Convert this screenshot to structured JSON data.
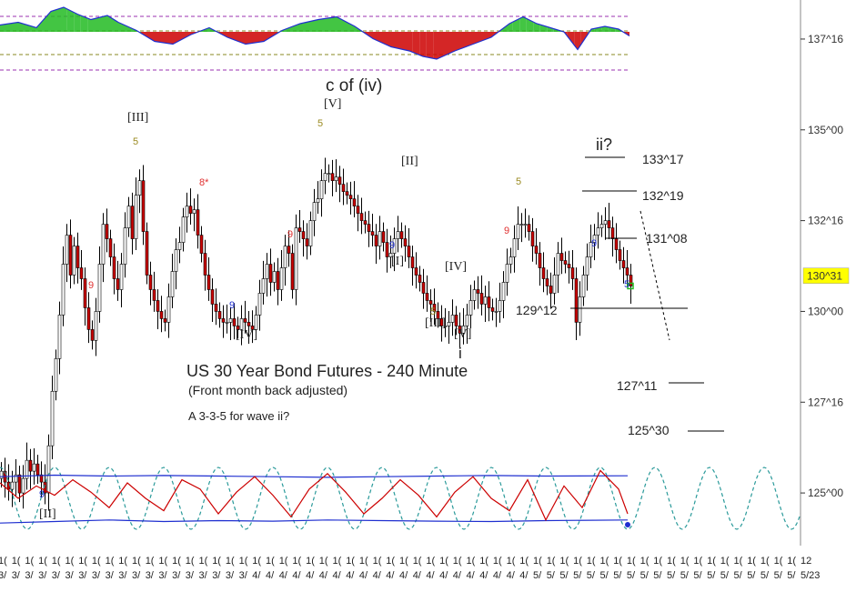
{
  "chart_data": {
    "type": "candlestick",
    "title": "US 30 Year Bond Futures - 240 Minute",
    "subtitle": "(Front month back adjusted)",
    "note": "A 3-3-5 for wave ii?",
    "price_axis": {
      "ylim": [
        123.6,
        138.2
      ],
      "ticks": [
        {
          "value": 137.5,
          "label": "137^16"
        },
        {
          "value": 135.0,
          "label": "135^00"
        },
        {
          "value": 132.5,
          "label": "132^16"
        },
        {
          "value": 130.0,
          "label": "130^00"
        },
        {
          "value": 127.5,
          "label": "127^16"
        },
        {
          "value": 125.0,
          "label": "125^00"
        }
      ],
      "current_price": {
        "value": 130.97,
        "label": "130^31",
        "color": "#ffff00"
      }
    },
    "x_tick_row1": [
      "1(",
      "1(",
      "1(",
      "1(",
      "1(",
      "1(",
      "1(",
      "1(",
      "1(",
      "1(",
      "1(",
      "1(",
      "1(",
      "1(",
      "1(",
      "1(",
      "1(",
      "1(",
      "1(",
      "1(",
      "1(",
      "1(",
      "1(",
      "1(",
      "1(",
      "1(",
      "1(",
      "1(",
      "1(",
      "1(",
      "1(",
      "1(",
      "1(",
      "1(",
      "1(",
      "1(",
      "1(",
      "1(",
      "1(",
      "1(",
      "1(",
      "1(",
      "1(",
      "1(",
      "1(",
      "1(",
      "1(",
      "1(",
      "1(",
      "1(",
      "1(",
      "1(",
      "1(",
      "1(",
      "1(",
      "1(",
      "1(",
      "1(",
      "1(",
      "1(",
      "12"
    ],
    "x_tick_row2": [
      "3/",
      "3/",
      "3/",
      "3/",
      "3/",
      "3/",
      "3/",
      "3/",
      "3/",
      "3/",
      "3/",
      "3/",
      "3/",
      "3/",
      "3/",
      "3/",
      "3/",
      "3/",
      "3/",
      "4/",
      "4/",
      "4/",
      "4/",
      "4/",
      "4/",
      "4/",
      "4/",
      "4/",
      "4/",
      "4/",
      "4/",
      "4/",
      "4/",
      "4/",
      "4/",
      "4/",
      "4/",
      "4/",
      "4/",
      "4/",
      "5/",
      "5/",
      "5/",
      "5/",
      "5/",
      "5/",
      "5/",
      "5/",
      "5/",
      "5/",
      "5/",
      "5/",
      "5/",
      "5/",
      "5/",
      "5/",
      "5/",
      "5/",
      "5/",
      "5/",
      "5/23"
    ],
    "price_series": [
      [
        0,
        125.6
      ],
      [
        4,
        125.3
      ],
      [
        8,
        125.1
      ],
      [
        12,
        125.3
      ],
      [
        16,
        125.5
      ],
      [
        20,
        125.0
      ],
      [
        24,
        125.4
      ],
      [
        28,
        125.9
      ],
      [
        32,
        125.6
      ],
      [
        36,
        125.8
      ],
      [
        40,
        125.5
      ],
      [
        44,
        125.3
      ],
      [
        48,
        125.0
      ],
      [
        52,
        126.3
      ],
      [
        56,
        127.8
      ],
      [
        60,
        128.7
      ],
      [
        64,
        129.9
      ],
      [
        68,
        131.3
      ],
      [
        72,
        132.1
      ],
      [
        76,
        131.0
      ],
      [
        80,
        131.8
      ],
      [
        84,
        131.2
      ],
      [
        88,
        130.9
      ],
      [
        92,
        130.1
      ],
      [
        96,
        129.5
      ],
      [
        100,
        129.2
      ],
      [
        104,
        130.0
      ],
      [
        108,
        131.3
      ],
      [
        112,
        132.4
      ],
      [
        116,
        132.0
      ],
      [
        120,
        131.5
      ],
      [
        124,
        130.9
      ],
      [
        128,
        130.6
      ],
      [
        132,
        131.3
      ],
      [
        136,
        132.3
      ],
      [
        140,
        132.9
      ],
      [
        144,
        132.0
      ],
      [
        148,
        133.2
      ],
      [
        152,
        133.6
      ],
      [
        156,
        132.2
      ],
      [
        160,
        131.0
      ],
      [
        164,
        130.6
      ],
      [
        168,
        130.3
      ],
      [
        172,
        130.0
      ],
      [
        176,
        129.8
      ],
      [
        180,
        129.7
      ],
      [
        184,
        130.4
      ],
      [
        188,
        131.1
      ],
      [
        192,
        131.7
      ],
      [
        196,
        131.9
      ],
      [
        200,
        132.6
      ],
      [
        204,
        132.9
      ],
      [
        208,
        132.7
      ],
      [
        212,
        132.8
      ],
      [
        216,
        132.1
      ],
      [
        220,
        131.6
      ],
      [
        224,
        131.0
      ],
      [
        228,
        130.6
      ],
      [
        232,
        130.2
      ],
      [
        236,
        130.0
      ],
      [
        240,
        129.8
      ],
      [
        244,
        129.7
      ],
      [
        248,
        129.7
      ],
      [
        252,
        129.8
      ],
      [
        256,
        129.6
      ],
      [
        260,
        129.5
      ],
      [
        264,
        129.8
      ],
      [
        268,
        129.7
      ],
      [
        272,
        129.6
      ],
      [
        276,
        129.5
      ],
      [
        280,
        129.9
      ],
      [
        284,
        130.5
      ],
      [
        288,
        130.9
      ],
      [
        292,
        131.3
      ],
      [
        296,
        130.8
      ],
      [
        300,
        131.1
      ],
      [
        304,
        130.6
      ],
      [
        308,
        131.2
      ],
      [
        312,
        131.8
      ],
      [
        316,
        131.6
      ],
      [
        320,
        130.6
      ],
      [
        324,
        132.3
      ],
      [
        328,
        132.2
      ],
      [
        332,
        132.0
      ],
      [
        336,
        131.8
      ],
      [
        340,
        132.5
      ],
      [
        344,
        133.0
      ],
      [
        348,
        133.1
      ],
      [
        352,
        133.6
      ],
      [
        356,
        133.8
      ],
      [
        360,
        133.8
      ],
      [
        364,
        133.6
      ],
      [
        368,
        133.7
      ],
      [
        372,
        133.5
      ],
      [
        376,
        133.3
      ],
      [
        380,
        133.2
      ],
      [
        384,
        133.1
      ],
      [
        388,
        132.9
      ],
      [
        392,
        132.7
      ],
      [
        396,
        132.5
      ],
      [
        400,
        132.4
      ],
      [
        404,
        132.2
      ],
      [
        408,
        132.1
      ],
      [
        412,
        131.8
      ],
      [
        416,
        132.2
      ],
      [
        420,
        131.9
      ],
      [
        424,
        131.5
      ],
      [
        428,
        131.6
      ],
      [
        432,
        132.0
      ],
      [
        436,
        132.2
      ],
      [
        440,
        132.0
      ],
      [
        444,
        131.8
      ],
      [
        448,
        131.5
      ],
      [
        452,
        131.2
      ],
      [
        456,
        131.0
      ],
      [
        460,
        130.8
      ],
      [
        464,
        130.5
      ],
      [
        468,
        130.3
      ],
      [
        472,
        130.2
      ],
      [
        476,
        130.0
      ],
      [
        480,
        129.8
      ],
      [
        484,
        129.6
      ],
      [
        488,
        129.6
      ],
      [
        492,
        129.7
      ],
      [
        496,
        129.9
      ],
      [
        500,
        129.6
      ],
      [
        504,
        129.4
      ],
      [
        508,
        129.6
      ],
      [
        512,
        129.9
      ],
      [
        516,
        130.3
      ],
      [
        520,
        130.6
      ],
      [
        524,
        130.5
      ],
      [
        528,
        130.2
      ],
      [
        532,
        130.4
      ],
      [
        536,
        130.1
      ],
      [
        540,
        130.0
      ],
      [
        544,
        130.0
      ],
      [
        548,
        130.3
      ],
      [
        552,
        130.8
      ],
      [
        556,
        131.3
      ],
      [
        560,
        131.5
      ],
      [
        564,
        132.0
      ],
      [
        568,
        132.4
      ],
      [
        572,
        132.4
      ],
      [
        576,
        132.4
      ],
      [
        580,
        132.2
      ],
      [
        584,
        131.8
      ],
      [
        588,
        131.6
      ],
      [
        592,
        131.2
      ],
      [
        596,
        130.9
      ],
      [
        600,
        130.7
      ],
      [
        604,
        130.5
      ],
      [
        608,
        131.0
      ],
      [
        612,
        131.6
      ],
      [
        616,
        131.4
      ],
      [
        620,
        131.3
      ],
      [
        624,
        131.2
      ],
      [
        628,
        130.9
      ],
      [
        632,
        129.7
      ],
      [
        636,
        130.4
      ],
      [
        640,
        131.0
      ],
      [
        644,
        131.5
      ],
      [
        648,
        131.9
      ],
      [
        652,
        132.1
      ],
      [
        656,
        132.3
      ],
      [
        660,
        132.4
      ],
      [
        664,
        132.5
      ],
      [
        668,
        132.3
      ],
      [
        672,
        132.0
      ],
      [
        676,
        131.7
      ],
      [
        680,
        131.4
      ],
      [
        684,
        131.2
      ],
      [
        688,
        131.0
      ],
      [
        692,
        130.7
      ]
    ],
    "oscillator_top": [
      [
        0,
        0.25
      ],
      [
        20,
        0.35
      ],
      [
        40,
        0.15
      ],
      [
        56,
        0.75
      ],
      [
        70,
        0.9
      ],
      [
        85,
        0.65
      ],
      [
        100,
        0.45
      ],
      [
        118,
        0.6
      ],
      [
        130,
        0.35
      ],
      [
        150,
        0.05
      ],
      [
        170,
        -0.35
      ],
      [
        190,
        -0.45
      ],
      [
        210,
        -0.1
      ],
      [
        230,
        0.15
      ],
      [
        250,
        -0.2
      ],
      [
        270,
        -0.45
      ],
      [
        290,
        -0.35
      ],
      [
        310,
        0.05
      ],
      [
        330,
        0.3
      ],
      [
        350,
        0.45
      ],
      [
        370,
        0.55
      ],
      [
        390,
        0.2
      ],
      [
        410,
        -0.25
      ],
      [
        430,
        -0.55
      ],
      [
        450,
        -0.7
      ],
      [
        465,
        -0.9
      ],
      [
        480,
        -1.0
      ],
      [
        500,
        -0.7
      ],
      [
        520,
        -0.45
      ],
      [
        540,
        -0.2
      ],
      [
        560,
        0.3
      ],
      [
        575,
        0.55
      ],
      [
        590,
        0.3
      ],
      [
        605,
        0.15
      ],
      [
        620,
        0.0
      ],
      [
        635,
        -0.65
      ],
      [
        650,
        0.1
      ],
      [
        665,
        0.2
      ],
      [
        680,
        0.1
      ],
      [
        692,
        -0.15
      ]
    ],
    "cycle_lines": {
      "red": [
        [
          0,
          0.5
        ],
        [
          20,
          0.0
        ],
        [
          40,
          0.4
        ],
        [
          60,
          0.1
        ],
        [
          80,
          0.6
        ],
        [
          100,
          0.2
        ],
        [
          120,
          -0.3
        ],
        [
          140,
          0.5
        ],
        [
          160,
          0.0
        ],
        [
          180,
          -0.4
        ],
        [
          200,
          0.6
        ],
        [
          220,
          0.3
        ],
        [
          240,
          -0.5
        ],
        [
          260,
          0.2
        ],
        [
          280,
          0.7
        ],
        [
          300,
          0.1
        ],
        [
          320,
          -0.6
        ],
        [
          340,
          0.3
        ],
        [
          360,
          0.8
        ],
        [
          380,
          0.2
        ],
        [
          400,
          -0.5
        ],
        [
          420,
          0.0
        ],
        [
          440,
          0.6
        ],
        [
          460,
          0.1
        ],
        [
          480,
          -0.6
        ],
        [
          500,
          0.2
        ],
        [
          520,
          0.7
        ],
        [
          540,
          0.0
        ],
        [
          560,
          -0.4
        ],
        [
          580,
          0.6
        ],
        [
          600,
          -0.7
        ],
        [
          620,
          0.4
        ],
        [
          640,
          -0.3
        ],
        [
          660,
          0.9
        ],
        [
          680,
          0.3
        ],
        [
          690,
          -0.5
        ]
      ],
      "upper_blue": [
        [
          0,
          0.7
        ],
        [
          60,
          0.75
        ],
        [
          120,
          0.72
        ],
        [
          180,
          0.74
        ],
        [
          240,
          0.72
        ],
        [
          300,
          0.7
        ],
        [
          360,
          0.68
        ],
        [
          420,
          0.7
        ],
        [
          480,
          0.72
        ],
        [
          540,
          0.74
        ],
        [
          600,
          0.72
        ],
        [
          690,
          0.73
        ]
      ],
      "lower_blue": [
        [
          0,
          -0.8
        ],
        [
          60,
          -0.75
        ],
        [
          120,
          -0.7
        ],
        [
          180,
          -0.75
        ],
        [
          240,
          -0.72
        ],
        [
          300,
          -0.74
        ],
        [
          360,
          -0.7
        ],
        [
          420,
          -0.72
        ],
        [
          480,
          -0.74
        ],
        [
          540,
          -0.75
        ],
        [
          600,
          -0.72
        ],
        [
          690,
          -0.7
        ]
      ]
    },
    "cycle_sine": {
      "period_px": 60,
      "x_start": 0,
      "x_end": 880,
      "amplitude": 1.0
    }
  },
  "wave_labels": {
    "c_of_iv": "c of (iv)",
    "V_top": "[V]",
    "III": "[III]",
    "IV_left": "[IV]",
    "II": "[II]",
    "I": "[I]",
    "IV_right": "[IV]",
    "III_low": "[III]",
    "V_low": "[V]",
    "i": "i",
    "ii": "ii?",
    "II_bottom": "[II]"
  },
  "count_labels": {
    "five": "5",
    "nine": "9",
    "eight_star": "8*"
  },
  "level_labels": {
    "l13317": "133^17",
    "l13219": "132^19",
    "l13108": "131^08",
    "l12912": "129^12",
    "l12711": "127^11",
    "l12530": "125^30"
  },
  "colors": {
    "bull": "#ffffff",
    "bear": "#cc0000",
    "green": "#22bb22",
    "red": "#cc0000",
    "blue": "#1f2fd0",
    "teal": "#2a9a9a",
    "dashed_purple": "#9b30b0",
    "dashed_olive": "#8a8a20"
  }
}
